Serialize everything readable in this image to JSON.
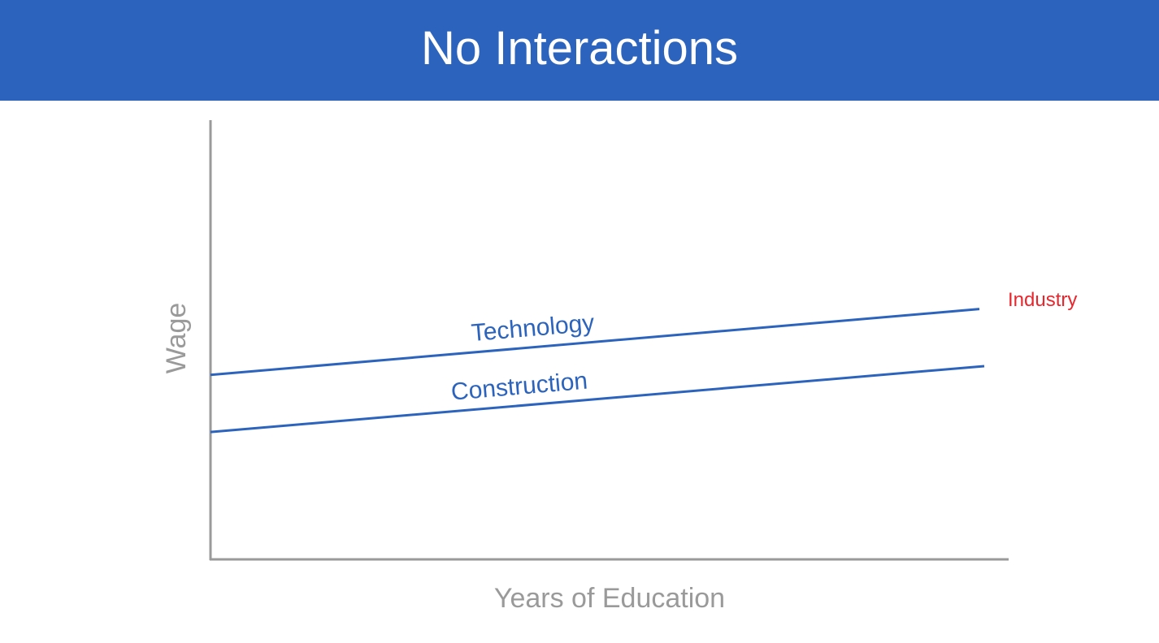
{
  "slide": {
    "title": "No Interactions",
    "title_bar_color": "#2c64bd",
    "background": "#ffffff"
  },
  "chart_data": {
    "type": "line",
    "title": "",
    "xlabel": "Years of Education",
    "ylabel": "Wage",
    "legend_title": "Industry",
    "legend_placement": "right",
    "grid": false,
    "xlim": [
      0,
      10
    ],
    "ylim": [
      0,
      10
    ],
    "x": [
      0,
      10
    ],
    "series": [
      {
        "name": "Technology",
        "values": [
          4.2,
          5.7
        ]
      },
      {
        "name": "Construction",
        "values": [
          2.9,
          4.4
        ]
      }
    ],
    "colors": {
      "series": "#2c64bd",
      "axis": "#9a9a9a",
      "axis_label": "#9a9a9a",
      "legend_title": "#e8262d"
    }
  }
}
